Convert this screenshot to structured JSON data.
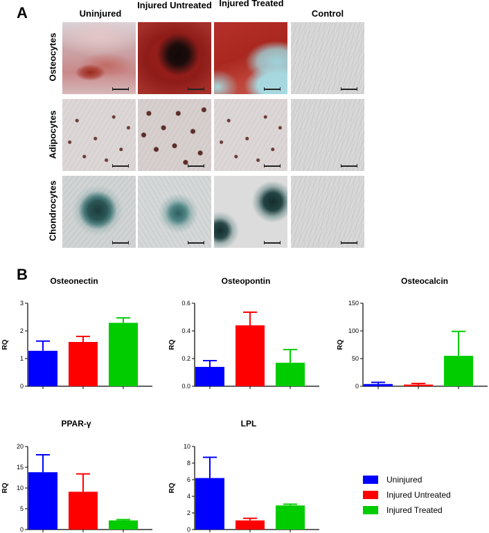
{
  "panel_a": {
    "letter": "A",
    "column_headers": [
      "Uninjured",
      "Injured Untreated",
      "Injured Treated",
      "Control"
    ],
    "row_labels": [
      "Osteocytes",
      "Adipocytes",
      "Chondrocytes"
    ]
  },
  "panel_b": {
    "letter": "B"
  },
  "colors": {
    "Uninjured": "#0000ff",
    "Injured Untreated": "#ff0000",
    "Injured Treated": "#00cc00"
  },
  "legend": {
    "placement": "bottom-right",
    "entries": [
      "Uninjured",
      "Injured Untreated",
      "Injured Treated"
    ]
  },
  "chart_data": [
    {
      "type": "bar",
      "title": "Osteonectin",
      "ylabel": "RQ",
      "categories": [
        "Uninjured",
        "Injured Untreated",
        "Injured Treated"
      ],
      "values": [
        1.28,
        1.6,
        2.29
      ],
      "errors": [
        0.35,
        0.2,
        0.18
      ],
      "ylim": [
        0,
        3
      ],
      "yticks": [
        0,
        1,
        2,
        3
      ],
      "ytick_labels": [
        "0",
        "1",
        "2",
        "3"
      ]
    },
    {
      "type": "bar",
      "title": "Osteopontin",
      "ylabel": "RQ",
      "categories": [
        "Uninjured",
        "Injured Untreated",
        "Injured Treated"
      ],
      "values": [
        0.14,
        0.44,
        0.17
      ],
      "errors": [
        0.045,
        0.095,
        0.095
      ],
      "ylim": [
        0,
        0.6
      ],
      "yticks": [
        0,
        0.2,
        0.4,
        0.6
      ],
      "ytick_labels": [
        "0.0",
        "0.2",
        "0.4",
        "0.6"
      ]
    },
    {
      "type": "bar",
      "title": "Osteocalcin",
      "ylabel": "RQ",
      "categories": [
        "Uninjured",
        "Injured Untreated",
        "Injured Treated"
      ],
      "values": [
        4,
        3,
        55
      ],
      "errors": [
        3,
        2,
        44
      ],
      "ylim": [
        0,
        150
      ],
      "yticks": [
        0,
        50,
        100,
        150
      ],
      "ytick_labels": [
        "0",
        "50",
        "100",
        "150"
      ]
    },
    {
      "type": "bar",
      "title": "PPAR-γ",
      "ylabel": "RQ",
      "categories": [
        "Uninjured",
        "Injured Untreated",
        "Injured Treated"
      ],
      "values": [
        13.8,
        9.1,
        2.2
      ],
      "errors": [
        4.2,
        4.3,
        0.2
      ],
      "ylim": [
        0,
        20
      ],
      "yticks": [
        0,
        5,
        10,
        15,
        20
      ],
      "ytick_labels": [
        "0",
        "5",
        "10",
        "15",
        "20"
      ]
    },
    {
      "type": "bar",
      "title": "LPL",
      "ylabel": "RQ",
      "categories": [
        "Uninjured",
        "Injured Untreated",
        "Injured Treated"
      ],
      "values": [
        6.2,
        1.1,
        2.9
      ],
      "errors": [
        2.5,
        0.25,
        0.15
      ],
      "ylim": [
        0,
        10
      ],
      "yticks": [
        0,
        2,
        4,
        6,
        8,
        10
      ],
      "ytick_labels": [
        "0",
        "2",
        "4",
        "6",
        "8",
        "10"
      ]
    }
  ]
}
